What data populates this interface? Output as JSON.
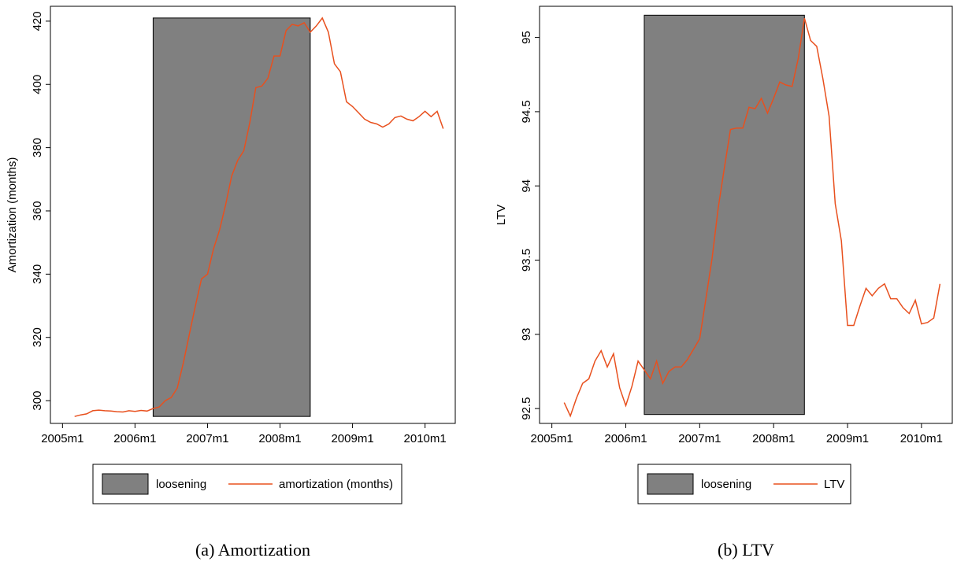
{
  "chart_data": [
    {
      "type": "line",
      "caption": "(a) Amortization",
      "ylabel": "Amortization (months)",
      "x": [
        "2005m3",
        "2005m4",
        "2005m5",
        "2005m6",
        "2005m7",
        "2005m8",
        "2005m9",
        "2005m10",
        "2005m11",
        "2005m12",
        "2006m1",
        "2006m2",
        "2006m3",
        "2006m4",
        "2006m5",
        "2006m6",
        "2006m7",
        "2006m8",
        "2006m9",
        "2006m10",
        "2006m11",
        "2006m12",
        "2007m1",
        "2007m2",
        "2007m3",
        "2007m4",
        "2007m5",
        "2007m6",
        "2007m7",
        "2007m8",
        "2007m9",
        "2007m10",
        "2007m11",
        "2007m12",
        "2008m1",
        "2008m2",
        "2008m3",
        "2008m4",
        "2008m5",
        "2008m6",
        "2008m7",
        "2008m8",
        "2008m9",
        "2008m10",
        "2008m11",
        "2008m12",
        "2009m1",
        "2009m2",
        "2009m3",
        "2009m4",
        "2009m5",
        "2009m6",
        "2009m7",
        "2009m8",
        "2009m9",
        "2009m10",
        "2009m11",
        "2009m12",
        "2010m1",
        "2010m2",
        "2010m3",
        "2010m4"
      ],
      "band": {
        "name": "loosening",
        "color": "#808080",
        "x": [
          "2006m4",
          "2008m6"
        ],
        "low": 295,
        "high": 421
      },
      "series": [
        {
          "name": "amortization (months)",
          "color": "#e8501e",
          "values": [
            295,
            295.5,
            295.8,
            296.8,
            297,
            296.8,
            296.7,
            296.5,
            296.4,
            296.8,
            296.6,
            296.9,
            296.7,
            297.5,
            298,
            300,
            301,
            304,
            312,
            321,
            330,
            338.5,
            340,
            348,
            354,
            362,
            371,
            376,
            379,
            388,
            399,
            399.5,
            402,
            409,
            409,
            417,
            419,
            418.5,
            419.5,
            416.5,
            418.5,
            421,
            416.5,
            406.5,
            404,
            394.5,
            393,
            391,
            389,
            388,
            387.5,
            386.5,
            387.5,
            389.5,
            390,
            389,
            388.5,
            389.8,
            391.5,
            389.8,
            391.5,
            386
          ]
        }
      ],
      "xlim": [
        "2004m11",
        "2010m6"
      ],
      "xticks": [
        "2005m1",
        "2006m1",
        "2007m1",
        "2008m1",
        "2009m1",
        "2010m1"
      ],
      "ylim": [
        292.8,
        424.7
      ],
      "yticks": [
        300,
        320,
        340,
        360,
        380,
        400,
        420
      ]
    },
    {
      "type": "line",
      "caption": "(b) LTV",
      "ylabel": "LTV",
      "x": [
        "2005m3",
        "2005m4",
        "2005m5",
        "2005m6",
        "2005m7",
        "2005m8",
        "2005m9",
        "2005m10",
        "2005m11",
        "2005m12",
        "2006m1",
        "2006m2",
        "2006m3",
        "2006m4",
        "2006m5",
        "2006m6",
        "2006m7",
        "2006m8",
        "2006m9",
        "2006m10",
        "2006m11",
        "2006m12",
        "2007m1",
        "2007m2",
        "2007m3",
        "2007m4",
        "2007m5",
        "2007m6",
        "2007m7",
        "2007m8",
        "2007m9",
        "2007m10",
        "2007m11",
        "2007m12",
        "2008m1",
        "2008m2",
        "2008m3",
        "2008m4",
        "2008m5",
        "2008m6",
        "2008m7",
        "2008m8",
        "2008m9",
        "2008m10",
        "2008m11",
        "2008m12",
        "2009m1",
        "2009m2",
        "2009m3",
        "2009m4",
        "2009m5",
        "2009m6",
        "2009m7",
        "2009m8",
        "2009m9",
        "2009m10",
        "2009m11",
        "2009m12",
        "2010m1",
        "2010m2",
        "2010m3",
        "2010m4"
      ],
      "band": {
        "name": "loosening",
        "color": "#808080",
        "x": [
          "2006m4",
          "2008m6"
        ],
        "low": 92.46,
        "high": 95.15
      },
      "series": [
        {
          "name": "LTV",
          "color": "#e8501e",
          "values": [
            92.54,
            92.45,
            92.57,
            92.67,
            92.7,
            92.82,
            92.89,
            92.78,
            92.87,
            92.64,
            92.52,
            92.65,
            92.82,
            92.76,
            92.7,
            92.82,
            92.67,
            92.75,
            92.78,
            92.78,
            92.83,
            92.9,
            92.97,
            93.24,
            93.51,
            93.85,
            94.12,
            94.38,
            94.39,
            94.39,
            94.53,
            94.52,
            94.59,
            94.49,
            94.59,
            94.7,
            94.68,
            94.67,
            94.86,
            95.13,
            94.98,
            94.94,
            94.72,
            94.47,
            93.88,
            93.63,
            93.06,
            93.06,
            93.19,
            93.31,
            93.26,
            93.31,
            93.34,
            93.24,
            93.24,
            93.18,
            93.14,
            93.23,
            93.07,
            93.08,
            93.11,
            93.34
          ]
        }
      ],
      "xlim": [
        "2004m11",
        "2010m6"
      ],
      "xticks": [
        "2005m1",
        "2006m1",
        "2007m1",
        "2008m1",
        "2009m1",
        "2010m1"
      ],
      "ylim": [
        92.4,
        95.21
      ],
      "yticks": [
        92.5,
        93,
        93.5,
        94,
        94.5,
        95
      ]
    }
  ]
}
